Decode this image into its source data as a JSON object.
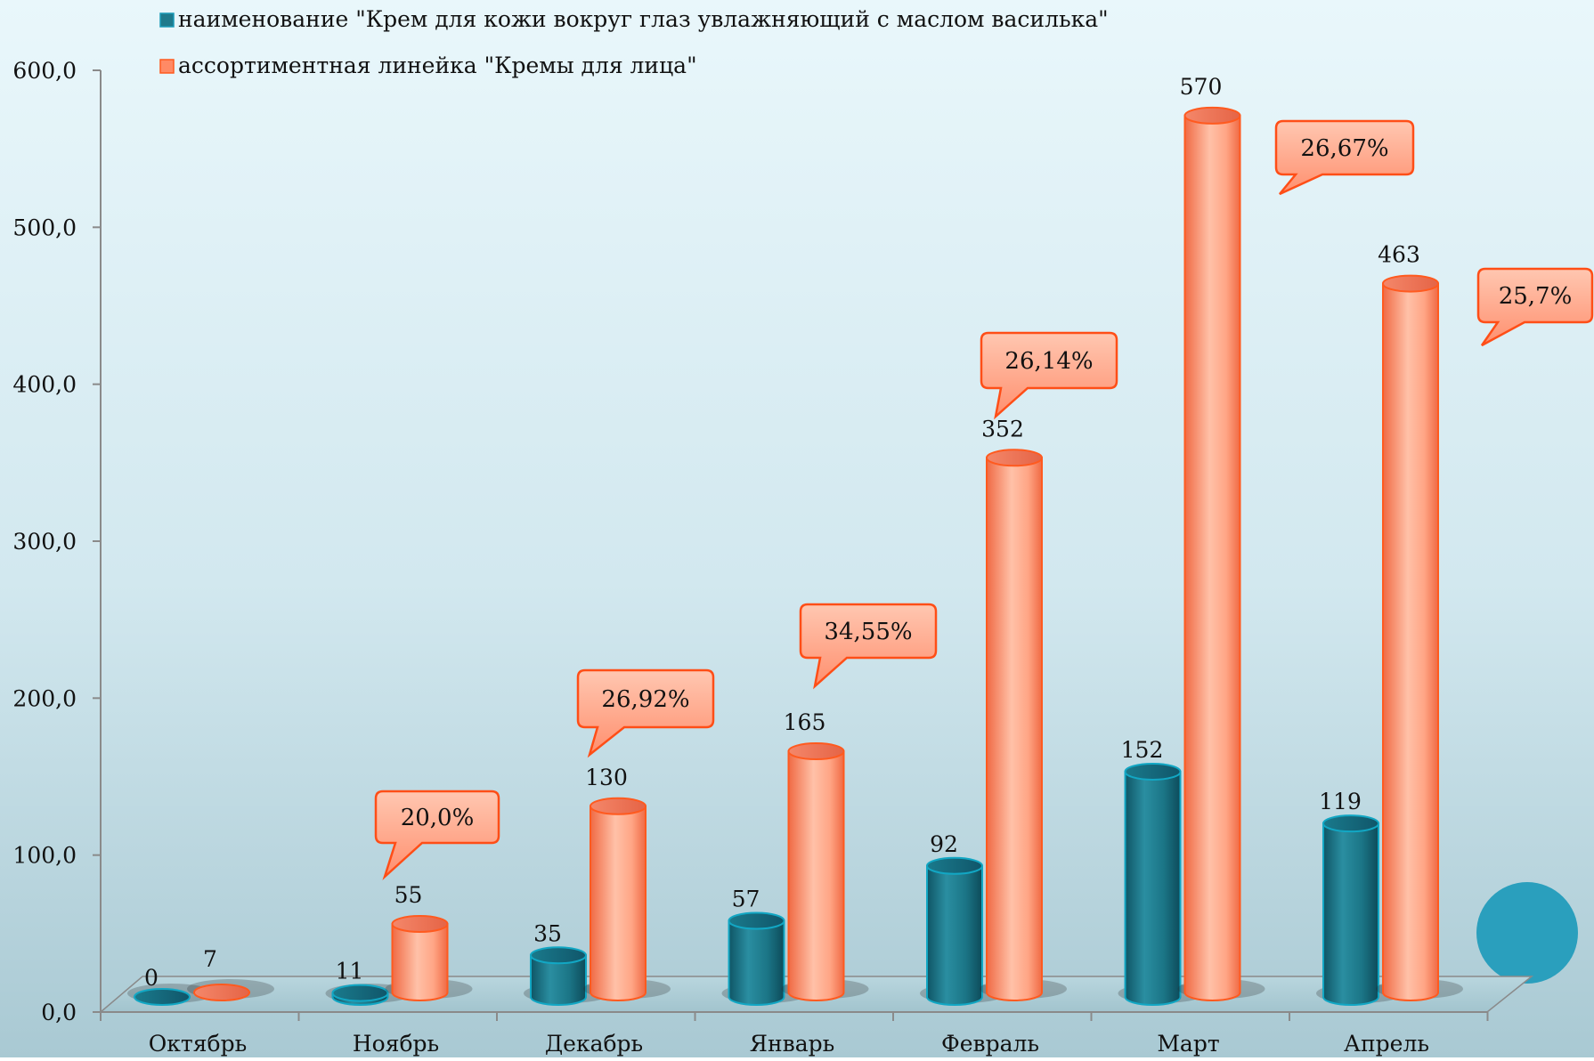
{
  "chart_data": {
    "type": "bar",
    "title": "",
    "xlabel": "",
    "ylabel": "",
    "categories": [
      "Октябрь",
      "Ноябрь",
      "Декабрь",
      "Январь",
      "Февраль",
      "Март",
      "Апрель"
    ],
    "series": [
      {
        "name": "наименование \"Крем для кожи вокруг глаз увлажняющий с маслом василька\"",
        "color": "#1e7a8c",
        "values": [
          0,
          11,
          35,
          57,
          92,
          152,
          119
        ],
        "labels": [
          "0",
          "11",
          "35",
          "57",
          "92",
          "152",
          "119"
        ]
      },
      {
        "name": "ассортиментная линейка \"Кремы для лица\"",
        "color": "#ff8a65",
        "values": [
          7,
          55,
          130,
          165,
          352,
          570,
          463
        ],
        "labels": [
          "7",
          "55",
          "130",
          "165",
          "352",
          "570",
          "463"
        ]
      }
    ],
    "callouts": [
      {
        "category": "Ноябрь",
        "text": "20,0%"
      },
      {
        "category": "Декабрь",
        "text": "26,92%"
      },
      {
        "category": "Январь",
        "text": "34,55%"
      },
      {
        "category": "Февраль",
        "text": "26,14%"
      },
      {
        "category": "Март",
        "text": "26,67%"
      },
      {
        "category": "Апрель",
        "text": "25,7%"
      }
    ],
    "ylim": [
      0,
      600
    ],
    "yticks": [
      0,
      100,
      200,
      300,
      400,
      500,
      600
    ],
    "ytick_labels": [
      "0,0",
      "100,0",
      "200,0",
      "300,0",
      "400,0",
      "500,0",
      "600,0"
    ],
    "legend_position": "top",
    "grid": false,
    "style": "3d-cylinder"
  }
}
